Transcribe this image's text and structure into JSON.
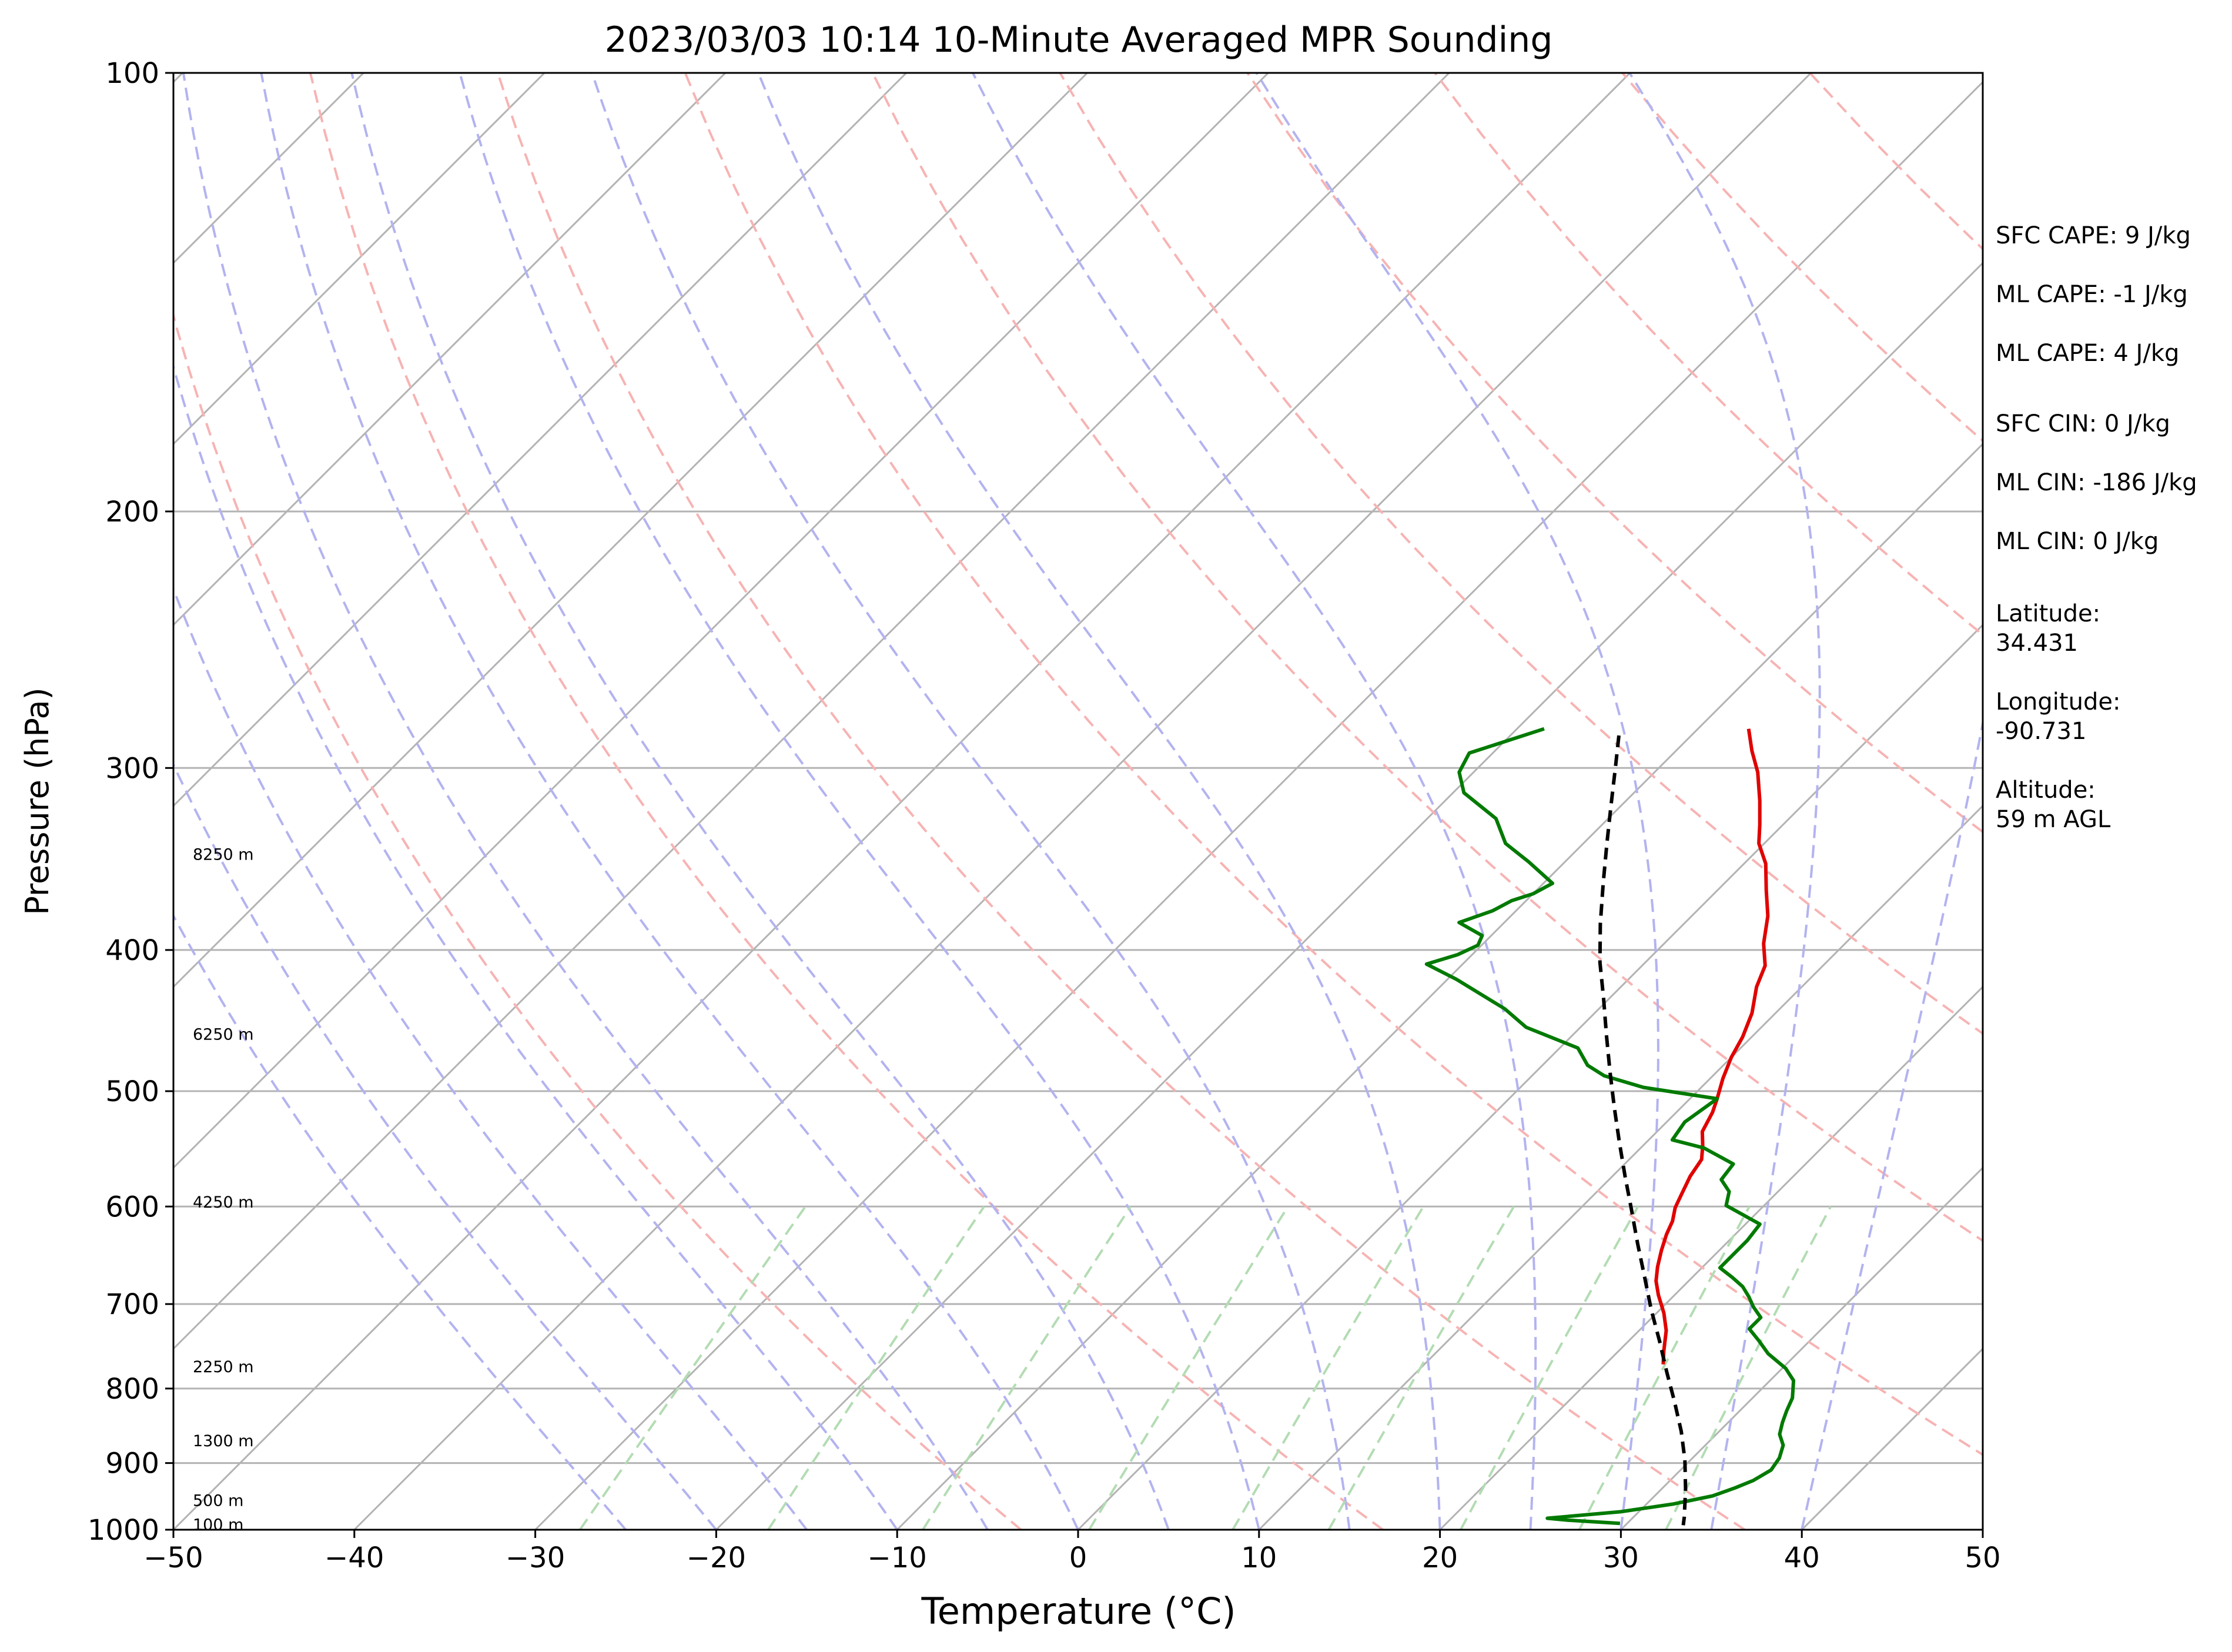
{
  "chart_data": {
    "type": "line",
    "subtype": "skew-T log-p diagram",
    "title": "2023/03/03 10:14 10-Minute Averaged MPR Sounding",
    "xlabel": "Temperature (°C)",
    "ylabel": "Pressure (hPa)",
    "xlim": [
      -50,
      50
    ],
    "ylim": [
      1000,
      100
    ],
    "y_scale": "log",
    "x_ticks": [
      "−50",
      "−40",
      "−30",
      "−20",
      "−10",
      "0",
      "10",
      "20",
      "30",
      "40",
      "50"
    ],
    "y_ticks": [
      "1000",
      "900",
      "800",
      "700",
      "600",
      "500",
      "400",
      "300",
      "200",
      "100"
    ],
    "grid": true,
    "height_labels": [
      {
        "text": "8250 m",
        "p": 344
      },
      {
        "text": "6250 m",
        "p": 457
      },
      {
        "text": "4250 m",
        "p": 596
      },
      {
        "text": "2250 m",
        "p": 773
      },
      {
        "text": "1300 m",
        "p": 869
      },
      {
        "text": "500 m",
        "p": 955
      },
      {
        "text": "100 m",
        "p": 992
      }
    ],
    "background_lines": {
      "isotherms_every_c": 10,
      "dry_adiabats_theta_k": [
        270,
        290,
        310,
        330,
        350,
        370,
        390,
        410,
        430,
        450,
        470
      ],
      "moist_adiabats_start_c": [
        -25,
        -20,
        -15,
        -10,
        -5,
        0,
        5,
        10,
        15,
        20,
        25,
        30,
        35,
        40
      ],
      "mixing_ratio_g_per_kg": [
        0.4,
        1,
        2,
        4,
        7,
        10,
        16,
        24,
        32
      ],
      "isotherm_color": "#b3b3b3",
      "dry_adiabat_color": "#f7b3b3",
      "moist_adiabat_color": "#b3b3f0",
      "mixing_ratio_color": "#b3dcb3"
    },
    "series": [
      {
        "role": "temperature",
        "color": "#e00000",
        "points": [
          [
            -7.2,
            282
          ],
          [
            -5.8,
            292
          ],
          [
            -4.3,
            302
          ],
          [
            -2.6,
            316
          ],
          [
            -1.3,
            328
          ],
          [
            -0.3,
            338
          ],
          [
            1.2,
            349
          ],
          [
            2.7,
            364
          ],
          [
            4.2,
            379
          ],
          [
            5.5,
            396
          ],
          [
            6.8,
            410
          ],
          [
            7.5,
            424
          ],
          [
            8.7,
            442
          ],
          [
            9.5,
            459
          ],
          [
            10.0,
            474
          ],
          [
            10.7,
            490
          ],
          [
            11.5,
            506
          ],
          [
            12.0,
            517
          ],
          [
            12.5,
            533
          ],
          [
            13.3,
            545
          ],
          [
            14.0,
            557
          ],
          [
            14.3,
            572
          ],
          [
            14.8,
            588
          ],
          [
            15.2,
            601
          ],
          [
            15.8,
            614
          ],
          [
            16.2,
            627
          ],
          [
            16.8,
            643
          ],
          [
            17.5,
            660
          ],
          [
            18.2,
            675
          ],
          [
            19.1,
            690
          ],
          [
            20.4,
            710
          ],
          [
            21.5,
            730
          ],
          [
            22.5,
            754
          ],
          [
            23.2,
            770
          ]
        ]
      },
      {
        "role": "dewpoint",
        "color": "#007a00",
        "points": [
          [
            -18.5,
            282
          ],
          [
            -21.3,
            293
          ],
          [
            -20.8,
            302
          ],
          [
            -19.4,
            312
          ],
          [
            -16.2,
            325
          ],
          [
            -14.3,
            338
          ],
          [
            -12.0,
            348
          ],
          [
            -9.5,
            360
          ],
          [
            -10.0,
            366
          ],
          [
            -10.8,
            370
          ],
          [
            -11.3,
            376
          ],
          [
            -12.5,
            383
          ],
          [
            -10.5,
            391
          ],
          [
            -10.2,
            397
          ],
          [
            -10.8,
            403
          ],
          [
            -12.0,
            409
          ],
          [
            -9.5,
            419
          ],
          [
            -5.2,
            439
          ],
          [
            -3.0,
            452
          ],
          [
            1.0,
            467
          ],
          [
            2.5,
            480
          ],
          [
            4.0,
            488
          ],
          [
            6.8,
            497
          ],
          [
            11.5,
            506
          ],
          [
            11.0,
            525
          ],
          [
            11.3,
            540
          ],
          [
            13.5,
            547
          ],
          [
            16.0,
            561
          ],
          [
            16.2,
            575
          ],
          [
            17.3,
            586
          ],
          [
            17.9,
            599
          ],
          [
            20.8,
            617
          ],
          [
            21.0,
            633
          ],
          [
            21.0,
            647
          ],
          [
            21.0,
            661
          ],
          [
            22.2,
            671
          ],
          [
            23.3,
            681
          ],
          [
            24.2,
            692
          ],
          [
            25.0,
            703
          ],
          [
            26.0,
            715
          ],
          [
            26.0,
            728
          ],
          [
            27.2,
            742
          ],
          [
            28.4,
            757
          ],
          [
            30.2,
            775
          ],
          [
            31.3,
            790
          ],
          [
            32.2,
            812
          ],
          [
            32.6,
            829
          ],
          [
            33.0,
            844
          ],
          [
            33.5,
            860
          ],
          [
            34.3,
            875
          ],
          [
            34.8,
            893
          ],
          [
            35.0,
            910
          ],
          [
            34.6,
            925
          ],
          [
            34.0,
            936
          ],
          [
            33.2,
            948
          ],
          [
            31.5,
            960
          ],
          [
            29.0,
            972
          ],
          [
            25.3,
            982
          ],
          [
            26.5,
            985
          ],
          [
            29.6,
            990
          ]
        ]
      },
      {
        "role": "parcel_path",
        "color": "#000000",
        "style": "dashed",
        "points": [
          [
            -14.0,
            285
          ],
          [
            -12.4,
            300
          ],
          [
            -10.6,
            318
          ],
          [
            -8.7,
            338
          ],
          [
            -6.7,
            360
          ],
          [
            -4.6,
            384
          ],
          [
            -2.5,
            408
          ],
          [
            -0.3,
            432
          ],
          [
            1.9,
            458
          ],
          [
            4.1,
            485
          ],
          [
            6.3,
            513
          ],
          [
            8.5,
            542
          ],
          [
            10.7,
            572
          ],
          [
            12.9,
            603
          ],
          [
            15.1,
            636
          ],
          [
            17.3,
            670
          ],
          [
            19.5,
            706
          ],
          [
            21.7,
            742
          ],
          [
            23.8,
            779
          ],
          [
            25.9,
            817
          ],
          [
            27.9,
            856
          ],
          [
            29.7,
            896
          ],
          [
            31.3,
            937
          ],
          [
            32.8,
            980
          ],
          [
            33.2,
            993
          ]
        ]
      }
    ],
    "annotations": [
      "SFC CAPE: 9 J/kg",
      "ML CAPE: -1 J/kg",
      "ML CAPE: 4 J/kg",
      "SFC CIN: 0 J/kg",
      "ML CIN: -186 J/kg",
      "ML CIN: 0 J/kg",
      "Latitude:",
      "34.431",
      "Longitude:",
      "-90.731",
      "Altitude:",
      "59 m AGL"
    ]
  }
}
